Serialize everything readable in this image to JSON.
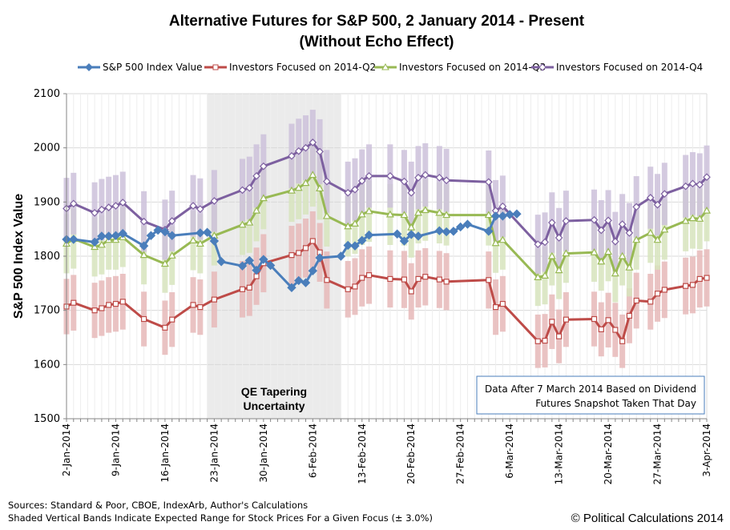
{
  "chart_data": {
    "type": "line",
    "title_line1": "Alternative Futures for S&P 500, 2 January 2014 - Present",
    "title_line2": "(Without Echo Effect)",
    "ylabel": "S&P 500 Index Value",
    "xlabel": "",
    "ylim": [
      1500,
      2100
    ],
    "yticks": [
      1500,
      1600,
      1700,
      1800,
      1900,
      2000,
      2100
    ],
    "grid": true,
    "legend_position": "top",
    "x_tick_labels": [
      "2-Jan-2014",
      "9-Jan-2014",
      "16-Jan-2014",
      "23-Jan-2014",
      "30-Jan-2014",
      "6-Feb-2014",
      "13-Feb-2014",
      "20-Feb-2014",
      "27-Feb-2014",
      "6-Mar-2014",
      "13-Mar-2014",
      "20-Mar-2014",
      "27-Mar-2014",
      "3-Apr-2014"
    ],
    "x_start": "2014-01-02",
    "x_end": "2014-04-03",
    "shaded_region": {
      "start": "2014-01-22",
      "end": "2014-02-10",
      "label_line1": "QE Tapering",
      "label_line2": "Uncertainty"
    },
    "band_pct": 3.0,
    "series": [
      {
        "name": "S&P 500 Index Value",
        "color": "#4a7ebb",
        "marker": "diamond-filled",
        "points": [
          [
            "2014-01-02",
            1831
          ],
          [
            "2014-01-03",
            1831
          ],
          [
            "2014-01-06",
            1826
          ],
          [
            "2014-01-07",
            1837
          ],
          [
            "2014-01-08",
            1837
          ],
          [
            "2014-01-09",
            1838
          ],
          [
            "2014-01-10",
            1842
          ],
          [
            "2014-01-13",
            1819
          ],
          [
            "2014-01-14",
            1838
          ],
          [
            "2014-01-15",
            1848
          ],
          [
            "2014-01-16",
            1845
          ],
          [
            "2014-01-17",
            1838
          ],
          [
            "2014-01-21",
            1843
          ],
          [
            "2014-01-22",
            1844
          ],
          [
            "2014-01-23",
            1828
          ],
          [
            "2014-01-24",
            1790
          ],
          [
            "2014-01-27",
            1782
          ],
          [
            "2014-01-28",
            1792
          ],
          [
            "2014-01-29",
            1774
          ],
          [
            "2014-01-30",
            1794
          ],
          [
            "2014-01-31",
            1783
          ],
          [
            "2014-02-03",
            1742
          ],
          [
            "2014-02-04",
            1755
          ],
          [
            "2014-02-05",
            1751
          ],
          [
            "2014-02-06",
            1773
          ],
          [
            "2014-02-07",
            1797
          ],
          [
            "2014-02-10",
            1800
          ],
          [
            "2014-02-11",
            1820
          ],
          [
            "2014-02-12",
            1819
          ],
          [
            "2014-02-13",
            1829
          ],
          [
            "2014-02-14",
            1839
          ],
          [
            "2014-02-18",
            1841
          ],
          [
            "2014-02-19",
            1828
          ],
          [
            "2014-02-20",
            1840
          ],
          [
            "2014-02-21",
            1837
          ],
          [
            "2014-02-24",
            1847
          ],
          [
            "2014-02-25",
            1845
          ],
          [
            "2014-02-26",
            1846
          ],
          [
            "2014-02-27",
            1854
          ],
          [
            "2014-02-28",
            1859
          ],
          [
            "2014-03-03",
            1846
          ],
          [
            "2014-03-04",
            1874
          ],
          [
            "2014-03-05",
            1874
          ],
          [
            "2014-03-06",
            1877
          ],
          [
            "2014-03-07",
            1878
          ]
        ]
      },
      {
        "name": "Investors Focused on 2014-Q2",
        "color": "#be4b48",
        "band_color": "#e6b9b8",
        "marker": "square-open",
        "points": [
          [
            "2014-01-02",
            1707
          ],
          [
            "2014-01-03",
            1714
          ],
          [
            "2014-01-06",
            1700
          ],
          [
            "2014-01-07",
            1704
          ],
          [
            "2014-01-08",
            1710
          ],
          [
            "2014-01-09",
            1712
          ],
          [
            "2014-01-10",
            1716
          ],
          [
            "2014-01-13",
            1684
          ],
          [
            "2014-01-16",
            1668
          ],
          [
            "2014-01-17",
            1683
          ],
          [
            "2014-01-20",
            1710
          ],
          [
            "2014-01-21",
            1706
          ],
          [
            "2014-01-23",
            1720
          ],
          [
            "2014-01-27",
            1739
          ],
          [
            "2014-01-28",
            1742
          ],
          [
            "2014-01-29",
            1763
          ],
          [
            "2014-01-30",
            1787
          ],
          [
            "2014-02-03",
            1802
          ],
          [
            "2014-02-04",
            1806
          ],
          [
            "2014-02-05",
            1815
          ],
          [
            "2014-02-06",
            1828
          ],
          [
            "2014-02-07",
            1807
          ],
          [
            "2014-02-08",
            1756
          ],
          [
            "2014-02-11",
            1739
          ],
          [
            "2014-02-12",
            1744
          ],
          [
            "2014-02-13",
            1760
          ],
          [
            "2014-02-14",
            1765
          ],
          [
            "2014-02-17",
            1758
          ],
          [
            "2014-02-19",
            1757
          ],
          [
            "2014-02-20",
            1735
          ],
          [
            "2014-02-21",
            1758
          ],
          [
            "2014-02-22",
            1762
          ],
          [
            "2014-02-24",
            1757
          ],
          [
            "2014-02-25",
            1753
          ],
          [
            "2014-03-03",
            1756
          ],
          [
            "2014-03-04",
            1706
          ],
          [
            "2014-03-05",
            1712
          ],
          [
            "2014-03-10",
            1643
          ],
          [
            "2014-03-11",
            1644
          ],
          [
            "2014-03-12",
            1679
          ],
          [
            "2014-03-13",
            1652
          ],
          [
            "2014-03-14",
            1683
          ],
          [
            "2014-03-18",
            1684
          ],
          [
            "2014-03-19",
            1665
          ],
          [
            "2014-03-20",
            1682
          ],
          [
            "2014-03-21",
            1664
          ],
          [
            "2014-03-22",
            1643
          ],
          [
            "2014-03-23",
            1690
          ],
          [
            "2014-03-24",
            1718
          ],
          [
            "2014-03-26",
            1716
          ],
          [
            "2014-03-27",
            1731
          ],
          [
            "2014-03-28",
            1738
          ],
          [
            "2014-03-31",
            1745
          ],
          [
            "2014-04-01",
            1747
          ],
          [
            "2014-04-02",
            1758
          ],
          [
            "2014-04-03",
            1760
          ]
        ]
      },
      {
        "name": "Investors Focused on 2014-Q3",
        "color": "#98b954",
        "band_color": "#d7e4bd",
        "marker": "triangle-open",
        "points": [
          [
            "2014-01-02",
            1823
          ],
          [
            "2014-01-03",
            1832
          ],
          [
            "2014-01-06",
            1817
          ],
          [
            "2014-01-07",
            1821
          ],
          [
            "2014-01-08",
            1830
          ],
          [
            "2014-01-09",
            1830
          ],
          [
            "2014-01-10",
            1835
          ],
          [
            "2014-01-13",
            1802
          ],
          [
            "2014-01-16",
            1786
          ],
          [
            "2014-01-17",
            1801
          ],
          [
            "2014-01-20",
            1829
          ],
          [
            "2014-01-21",
            1823
          ],
          [
            "2014-01-23",
            1838
          ],
          [
            "2014-01-27",
            1858
          ],
          [
            "2014-01-28",
            1862
          ],
          [
            "2014-01-29",
            1884
          ],
          [
            "2014-01-30",
            1907
          ],
          [
            "2014-02-03",
            1921
          ],
          [
            "2014-02-04",
            1926
          ],
          [
            "2014-02-05",
            1935
          ],
          [
            "2014-02-06",
            1950
          ],
          [
            "2014-02-07",
            1925
          ],
          [
            "2014-02-08",
            1874
          ],
          [
            "2014-02-11",
            1855
          ],
          [
            "2014-02-12",
            1860
          ],
          [
            "2014-02-13",
            1877
          ],
          [
            "2014-02-14",
            1883
          ],
          [
            "2014-02-17",
            1877
          ],
          [
            "2014-02-19",
            1876
          ],
          [
            "2014-02-20",
            1853
          ],
          [
            "2014-02-21",
            1880
          ],
          [
            "2014-02-22",
            1885
          ],
          [
            "2014-02-24",
            1880
          ],
          [
            "2014-02-25",
            1876
          ],
          [
            "2014-03-03",
            1876
          ],
          [
            "2014-03-04",
            1824
          ],
          [
            "2014-03-05",
            1830
          ],
          [
            "2014-03-10",
            1761
          ],
          [
            "2014-03-11",
            1764
          ],
          [
            "2014-03-12",
            1800
          ],
          [
            "2014-03-13",
            1774
          ],
          [
            "2014-03-14",
            1805
          ],
          [
            "2014-03-18",
            1807
          ],
          [
            "2014-03-19",
            1790
          ],
          [
            "2014-03-20",
            1808
          ],
          [
            "2014-03-21",
            1768
          ],
          [
            "2014-03-22",
            1800
          ],
          [
            "2014-03-23",
            1779
          ],
          [
            "2014-03-24",
            1830
          ],
          [
            "2014-03-26",
            1843
          ],
          [
            "2014-03-27",
            1830
          ],
          [
            "2014-03-28",
            1849
          ],
          [
            "2014-03-31",
            1865
          ],
          [
            "2014-04-01",
            1870
          ],
          [
            "2014-04-02",
            1869
          ],
          [
            "2014-04-03",
            1884
          ]
        ]
      },
      {
        "name": "Investors Focused on 2014-Q4",
        "color": "#7d60a0",
        "band_color": "#ccc1da",
        "marker": "diamond-open",
        "points": [
          [
            "2014-01-02",
            1888
          ],
          [
            "2014-01-03",
            1897
          ],
          [
            "2014-01-06",
            1880
          ],
          [
            "2014-01-07",
            1886
          ],
          [
            "2014-01-08",
            1890
          ],
          [
            "2014-01-09",
            1893
          ],
          [
            "2014-01-10",
            1899
          ],
          [
            "2014-01-13",
            1864
          ],
          [
            "2014-01-16",
            1849
          ],
          [
            "2014-01-17",
            1865
          ],
          [
            "2014-01-20",
            1893
          ],
          [
            "2014-01-21",
            1887
          ],
          [
            "2014-01-23",
            1902
          ],
          [
            "2014-01-27",
            1922
          ],
          [
            "2014-01-28",
            1926
          ],
          [
            "2014-01-29",
            1948
          ],
          [
            "2014-01-30",
            1966
          ],
          [
            "2014-02-03",
            1985
          ],
          [
            "2014-02-04",
            1994
          ],
          [
            "2014-02-05",
            2000
          ],
          [
            "2014-02-06",
            2010
          ],
          [
            "2014-02-07",
            1993
          ],
          [
            "2014-02-08",
            1938
          ],
          [
            "2014-02-11",
            1917
          ],
          [
            "2014-02-12",
            1923
          ],
          [
            "2014-02-13",
            1939
          ],
          [
            "2014-02-14",
            1948
          ],
          [
            "2014-02-17",
            1948
          ],
          [
            "2014-02-19",
            1938
          ],
          [
            "2014-02-20",
            1917
          ],
          [
            "2014-02-21",
            1945
          ],
          [
            "2014-02-22",
            1950
          ],
          [
            "2014-02-24",
            1945
          ],
          [
            "2014-02-25",
            1940
          ],
          [
            "2014-03-03",
            1937
          ],
          [
            "2014-03-04",
            1884
          ],
          [
            "2014-03-05",
            1892
          ],
          [
            "2014-03-10",
            1822
          ],
          [
            "2014-03-11",
            1826
          ],
          [
            "2014-03-12",
            1862
          ],
          [
            "2014-03-13",
            1834
          ],
          [
            "2014-03-14",
            1865
          ],
          [
            "2014-03-18",
            1867
          ],
          [
            "2014-03-19",
            1848
          ],
          [
            "2014-03-20",
            1866
          ],
          [
            "2014-03-21",
            1827
          ],
          [
            "2014-03-22",
            1859
          ],
          [
            "2014-03-23",
            1843
          ],
          [
            "2014-03-24",
            1891
          ],
          [
            "2014-03-26",
            1908
          ],
          [
            "2014-03-27",
            1895
          ],
          [
            "2014-03-28",
            1915
          ],
          [
            "2014-03-31",
            1929
          ],
          [
            "2014-04-01",
            1934
          ],
          [
            "2014-04-02",
            1932
          ],
          [
            "2014-04-03",
            1946
          ]
        ]
      }
    ]
  },
  "annotation_line1": "Data After 7 March 2014  Based on Dividend",
  "annotation_line2": "Futures Snapshot Taken That Day",
  "source_line1": "Sources: Standard & Poor, CBOE, IndexArb, Author's Calculations",
  "source_line2": "Shaded Vertical Bands Indicate Expected Range for Stock Prices For a Given Focus  (± 3.0%)",
  "copyright": "© Political Calculations 2014"
}
